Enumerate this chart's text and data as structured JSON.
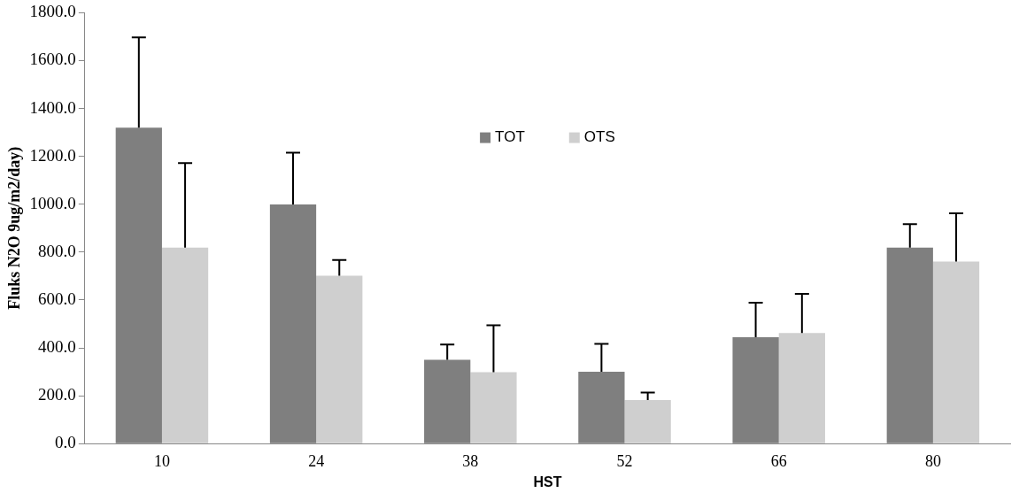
{
  "chart_data": {
    "type": "bar",
    "xlabel": "HST",
    "ylabel": "Fluks N2O 9ug/m2/day)",
    "categories": [
      "10",
      "24",
      "38",
      "52",
      "66",
      "80"
    ],
    "series": [
      {
        "name": "TOT",
        "color": "#7f7f7f",
        "values": [
          1320,
          999,
          350,
          300,
          444,
          819
        ],
        "errors": [
          [
            1320,
            1697
          ],
          [
            999,
            1215
          ],
          [
            350,
            414
          ],
          [
            300,
            417
          ],
          [
            444,
            589
          ],
          [
            819,
            917
          ]
        ]
      },
      {
        "name": "OTS",
        "color": "#cfcfcf",
        "values": [
          819,
          701,
          298,
          182,
          462,
          761
        ],
        "errors": [
          [
            819,
            1172
          ],
          [
            701,
            767
          ],
          [
            298,
            494
          ],
          [
            182,
            213
          ],
          [
            462,
            626
          ],
          [
            761,
            962
          ]
        ]
      }
    ],
    "ylim": [
      0,
      1800
    ],
    "yticks": [
      {
        "value": 0,
        "label": "0.0"
      },
      {
        "value": 200,
        "label": "200.0"
      },
      {
        "value": 400,
        "label": "400.0"
      },
      {
        "value": 600,
        "label": "600.0"
      },
      {
        "value": 800,
        "label": "800.0"
      },
      {
        "value": 1000,
        "label": "1000.0"
      },
      {
        "value": 1200,
        "label": "1200.0"
      },
      {
        "value": 1400,
        "label": "1400.0"
      },
      {
        "value": 1600,
        "label": "1600.0"
      },
      {
        "value": 1800,
        "label": "1800.0"
      }
    ],
    "grid": false,
    "legend": "top"
  }
}
